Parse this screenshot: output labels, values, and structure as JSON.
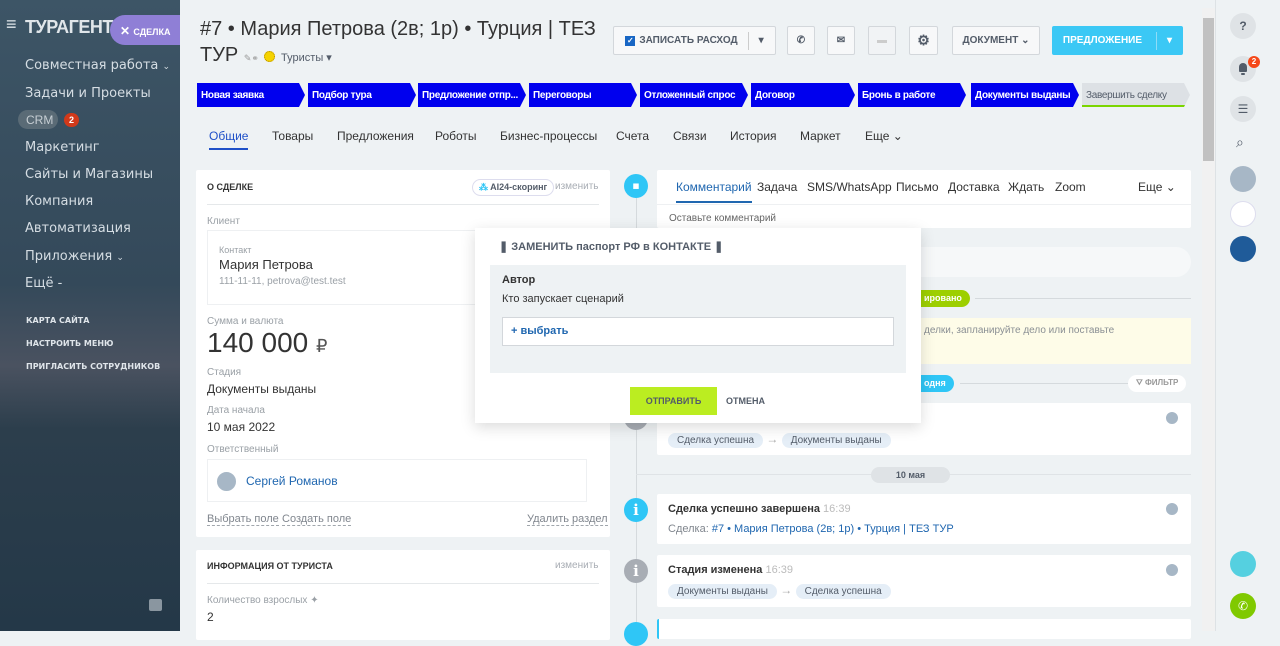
{
  "sidebar": {
    "logo": "ТУРАГЕНТ",
    "deal_tag": "СДЕЛКА",
    "items": [
      "Совместная работа",
      "Задачи и Проекты",
      "CRM",
      "Маркетинг",
      "Сайты и Магазины",
      "Компания",
      "Автоматизация",
      "Приложения",
      "Ещё"
    ],
    "crm_badge": "2",
    "small_links": [
      "КАРТА САЙТА",
      "НАСТРОИТЬ МЕНЮ",
      "ПРИГЛАСИТЬ СОТРУДНИКОВ"
    ]
  },
  "header": {
    "title_line1": "#7 • Мария Петрова (2в; 1р) • Турция | ТЕЗ",
    "title_line2": "ТУР",
    "category": "Туристы",
    "buttons": {
      "expense": "ЗАПИСАТЬ РАСХОД",
      "document": "ДОКУМЕНТ",
      "offer": "ПРЕДЛОЖЕНИЕ"
    }
  },
  "stages": [
    "Новая заявка",
    "Подбор тура",
    "Предложение отпр...",
    "Переговоры",
    "Отложенный спрос",
    "Договор",
    "Бронь в работе",
    "Документы выданы",
    "Завершить сделку"
  ],
  "stage_color": "#0000ee",
  "tabs": [
    "Общие",
    "Товары",
    "Предложения",
    "Роботы",
    "Бизнес-процессы",
    "Счета",
    "Связи",
    "История",
    "Маркет",
    "Еще"
  ],
  "deal": {
    "heading": "О СДЕЛКЕ",
    "scoring": "AI24-скоринг",
    "edit": "изменить",
    "client_label": "Клиент",
    "contact_label": "Контакт",
    "contact_name": "Мария Петрова",
    "contact_info": "111-11-11, petrova@test.test",
    "sum_label": "Сумма и валюта",
    "sum": "140 000",
    "currency": "₽",
    "stage_label": "Стадия",
    "stage": "Документы выданы",
    "date_label": "Дата начала",
    "date": "10 мая 2022",
    "resp_label": "Ответственный",
    "resp": "Сергей Романов",
    "select_field": "Выбрать поле",
    "create_field": "Создать поле",
    "delete_section": "Удалить раздел"
  },
  "tourist": {
    "heading": "ИНФОРМАЦИЯ ОТ ТУРИСТА",
    "edit": "изменить",
    "adults_label": "Количество взрослых",
    "adults": "2"
  },
  "timeline": {
    "tabs": [
      "Комментарий",
      "Задача",
      "SMS/WhatsApp",
      "Письмо",
      "Доставка",
      "Ждать",
      "Zoom",
      "Еще"
    ],
    "comment_placeholder": "Оставьте комментарий",
    "planned_fragment": "ировано",
    "hint_fragment": "делки, запланируйте дело или поставьте",
    "today_fragment": "одня",
    "filter": "ФИЛЬТР",
    "date_sep": "10 мая",
    "items": [
      {
        "from": "Сделка успешна",
        "to": "Документы выданы"
      },
      {
        "title": "Сделка успешно завершена",
        "time": "16:39",
        "prefix": "Сделка:",
        "link": "#7 • Мария Петрова (2в; 1р) • Турция | ТЕЗ ТУР"
      },
      {
        "title": "Стадия изменена",
        "time": "16:39",
        "from": "Документы выданы",
        "to": "Сделка успешна"
      }
    ]
  },
  "modal": {
    "title": "ЗАМЕНИТЬ паспорт РФ в КОНТАКТЕ",
    "author": "Автор",
    "desc": "Кто запускает сценарий",
    "select": "+ выбрать",
    "send": "ОТПРАВИТЬ",
    "cancel": "ОТМЕНА"
  },
  "right_panel": {
    "notif_badge": "2"
  }
}
